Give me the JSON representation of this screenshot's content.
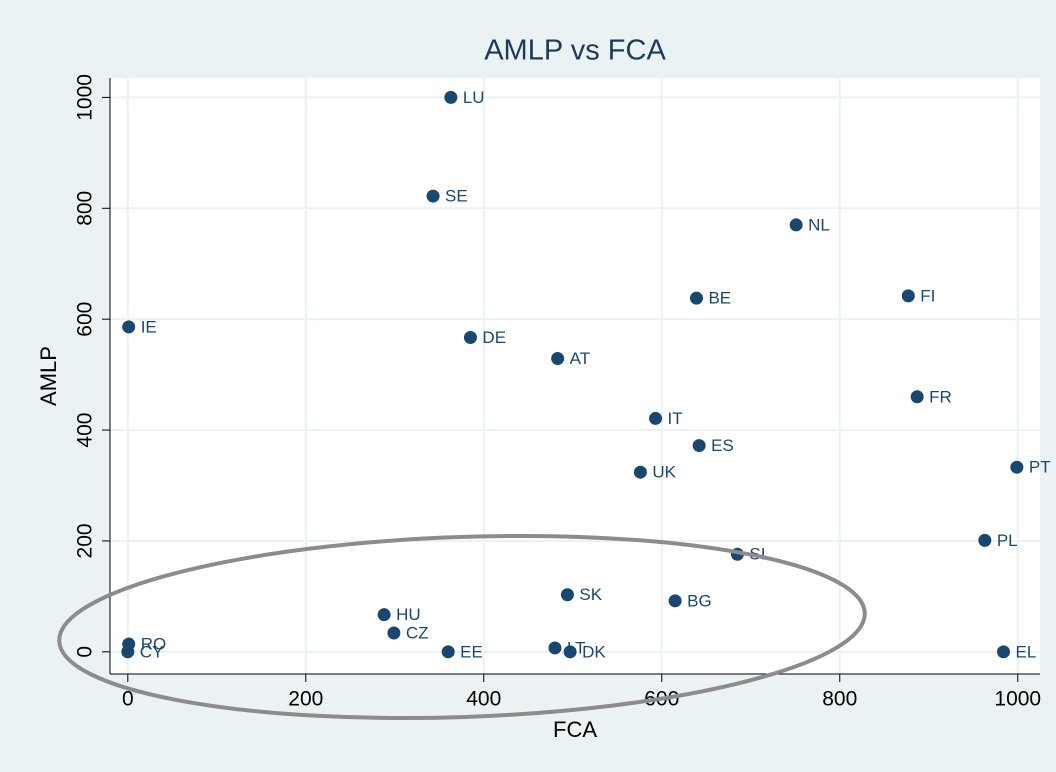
{
  "chart_data": {
    "type": "scatter",
    "title": "AMLP vs FCA",
    "x_label": "FCA",
    "y_label": "AMLP",
    "color": "#1a476f",
    "grid": true,
    "xlim": [
      -20,
      1025
    ],
    "ylim": [
      -40,
      1035
    ],
    "xticks": [
      0,
      200,
      400,
      600,
      800,
      1000
    ],
    "yticks": [
      0,
      200,
      400,
      600,
      800,
      1000
    ],
    "labels": [
      "LU",
      "SE",
      "NL",
      "BE",
      "FI",
      "IE",
      "DE",
      "AT",
      "FR",
      "IT",
      "ES",
      "UK",
      "PT",
      "PL",
      "SI",
      "SK",
      "BG",
      "HU",
      "CZ",
      "RO",
      "CY",
      "EE",
      "LT",
      "DK",
      "EL"
    ],
    "x": [
      363,
      343,
      751,
      639,
      877,
      1,
      385,
      483,
      887,
      593,
      642,
      576,
      999,
      963,
      685,
      494,
      615,
      288,
      299,
      1,
      0,
      360,
      480,
      497,
      984
    ],
    "values": [
      1000,
      822,
      770,
      638,
      642,
      586,
      567,
      529,
      460,
      421,
      372,
      324,
      333,
      201,
      176,
      103,
      92,
      67,
      34,
      14,
      0,
      0,
      7,
      0,
      0
    ]
  }
}
